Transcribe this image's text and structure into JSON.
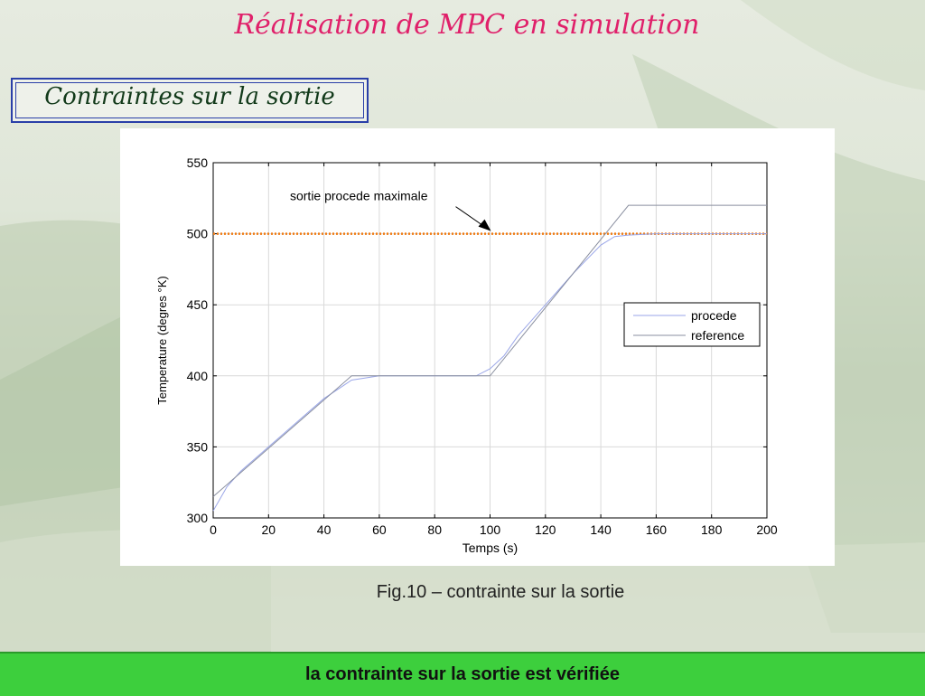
{
  "slide": {
    "title": "Réalisation de MPC en simulation",
    "section": "Contraintes  sur la sortie",
    "caption": "Fig.10 – contrainte sur la sortie",
    "conclusion": "la contrainte sur la sortie est vérifiée"
  },
  "colors": {
    "title": "#e0206a",
    "section_text": "#123a1a",
    "section_border": "#2a3fa8",
    "banner": "#3dcf3d",
    "limit_line": "#f07a10",
    "procede_line": "#9aa6e8",
    "reference_line": "#8a8fa0"
  },
  "chart_data": {
    "type": "line",
    "xlabel": "Temps (s)",
    "ylabel": "Temperature (degres °K)",
    "xlim": [
      0,
      200
    ],
    "ylim": [
      300,
      550
    ],
    "xticks": [
      0,
      20,
      40,
      60,
      80,
      100,
      120,
      140,
      160,
      180,
      200
    ],
    "yticks": [
      300,
      350,
      400,
      450,
      500,
      550
    ],
    "grid": true,
    "legend_position": "right",
    "annotation": {
      "text": "sortie procede maximale",
      "x": 100,
      "y": 500
    },
    "limit": {
      "y": 500
    },
    "series": [
      {
        "name": "procede",
        "x": [
          0,
          5,
          10,
          20,
          30,
          40,
          50,
          60,
          90,
          95,
          100,
          105,
          110,
          120,
          130,
          140,
          145,
          150,
          160,
          200
        ],
        "y": [
          305,
          322,
          333,
          350,
          367,
          384,
          397,
          400,
          400,
          400,
          405,
          414,
          428,
          450,
          472,
          492,
          498,
          499,
          500,
          500
        ]
      },
      {
        "name": "reference",
        "x": [
          0,
          50,
          100,
          150,
          200
        ],
        "y": [
          315,
          400,
          400,
          520,
          520
        ]
      }
    ]
  }
}
